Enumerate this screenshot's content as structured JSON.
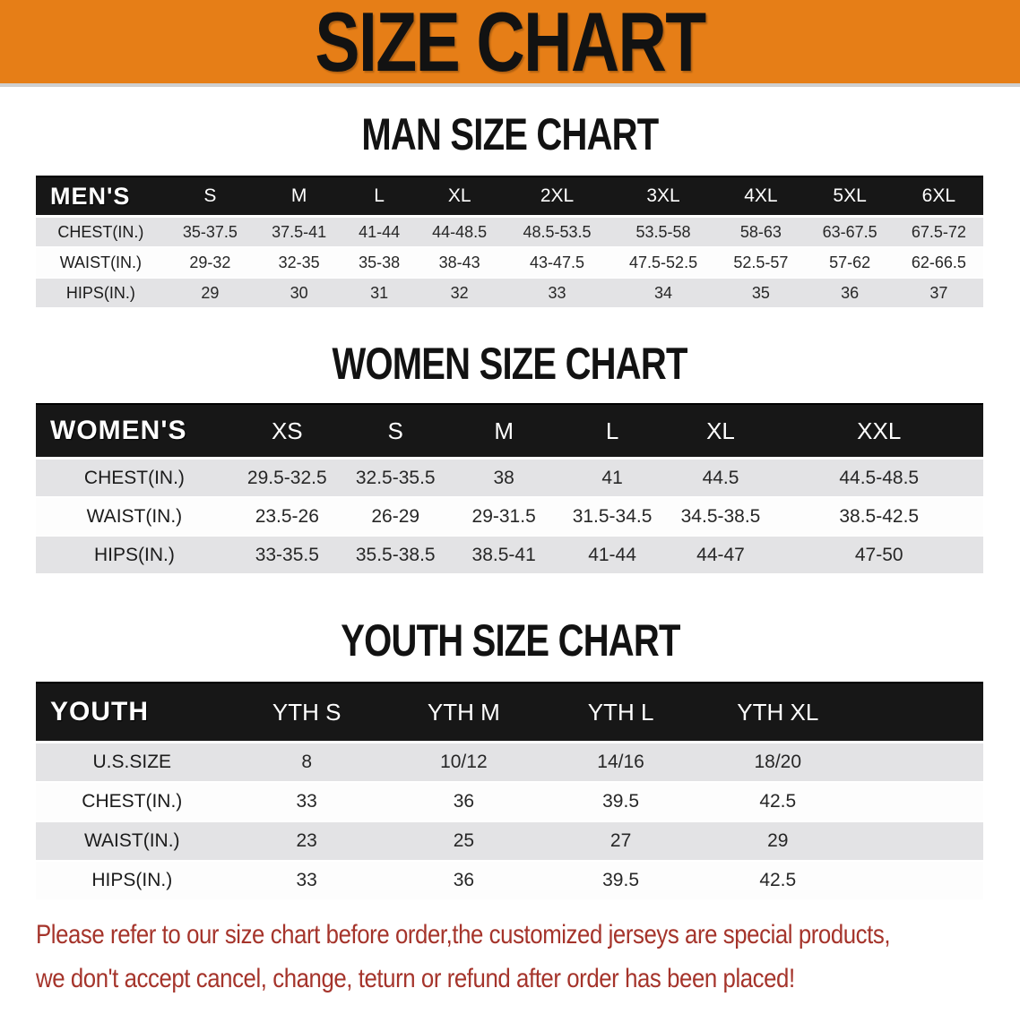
{
  "banner": {
    "title": "SIZE CHART"
  },
  "palette": {
    "banner_orange": "#E67E17",
    "header_black": "#171717",
    "row_gray": "#E3E3E5",
    "row_white": "#FDFDFD",
    "title_black": "#121212",
    "disclaimer_red": "#A5342B"
  },
  "sections": [
    {
      "id": "men",
      "title": "MAN SIZE CHART",
      "header_label": "MEN'S",
      "columns": [
        "S",
        "M",
        "L",
        "XL",
        "2XL",
        "3XL",
        "4XL",
        "5XL",
        "6XL"
      ],
      "rows": [
        {
          "label": "CHEST(IN.)",
          "values": [
            "35-37.5",
            "37.5-41",
            "41-44",
            "44-48.5",
            "48.5-53.5",
            "53.5-58",
            "58-63",
            "63-67.5",
            "67.5-72"
          ]
        },
        {
          "label": "WAIST(IN.)",
          "values": [
            "29-32",
            "32-35",
            "35-38",
            "38-43",
            "43-47.5",
            "47.5-52.5",
            "52.5-57",
            "57-62",
            "62-66.5"
          ]
        },
        {
          "label": "HIPS(IN.)",
          "values": [
            "29",
            "30",
            "31",
            "32",
            "33",
            "34",
            "35",
            "36",
            "37"
          ]
        }
      ]
    },
    {
      "id": "women",
      "title": "WOMEN SIZE CHART",
      "header_label": "WOMEN'S",
      "columns": [
        "XS",
        "S",
        "M",
        "L",
        "XL",
        "XXL"
      ],
      "rows": [
        {
          "label": "CHEST(IN.)",
          "values": [
            "29.5-32.5",
            "32.5-35.5",
            "38",
            "41",
            "44.5",
            "44.5-48.5"
          ]
        },
        {
          "label": "WAIST(IN.)",
          "values": [
            "23.5-26",
            "26-29",
            "29-31.5",
            "31.5-34.5",
            "34.5-38.5",
            "38.5-42.5"
          ]
        },
        {
          "label": "HIPS(IN.)",
          "values": [
            "33-35.5",
            "35.5-38.5",
            "38.5-41",
            "41-44",
            "44-47",
            "47-50"
          ]
        }
      ]
    },
    {
      "id": "youth",
      "title": "YOUTH SIZE CHART",
      "header_label": "YOUTH",
      "columns": [
        "YTH S",
        "YTH M",
        "YTH L",
        "YTH XL"
      ],
      "rows": [
        {
          "label": "U.S.SIZE",
          "values": [
            "8",
            "10/12",
            "14/16",
            "18/20"
          ]
        },
        {
          "label": "CHEST(IN.)",
          "values": [
            "33",
            "36",
            "39.5",
            "42.5"
          ]
        },
        {
          "label": "WAIST(IN.)",
          "values": [
            "23",
            "25",
            "27",
            "29"
          ]
        },
        {
          "label": "HIPS(IN.)",
          "values": [
            "33",
            "36",
            "39.5",
            "42.5"
          ]
        }
      ]
    }
  ],
  "disclaimer": {
    "line1": "Please refer to our size chart before order,the customized jerseys are special products,",
    "line2": "we don't accept cancel, change, teturn or refund after order has been placed!"
  }
}
